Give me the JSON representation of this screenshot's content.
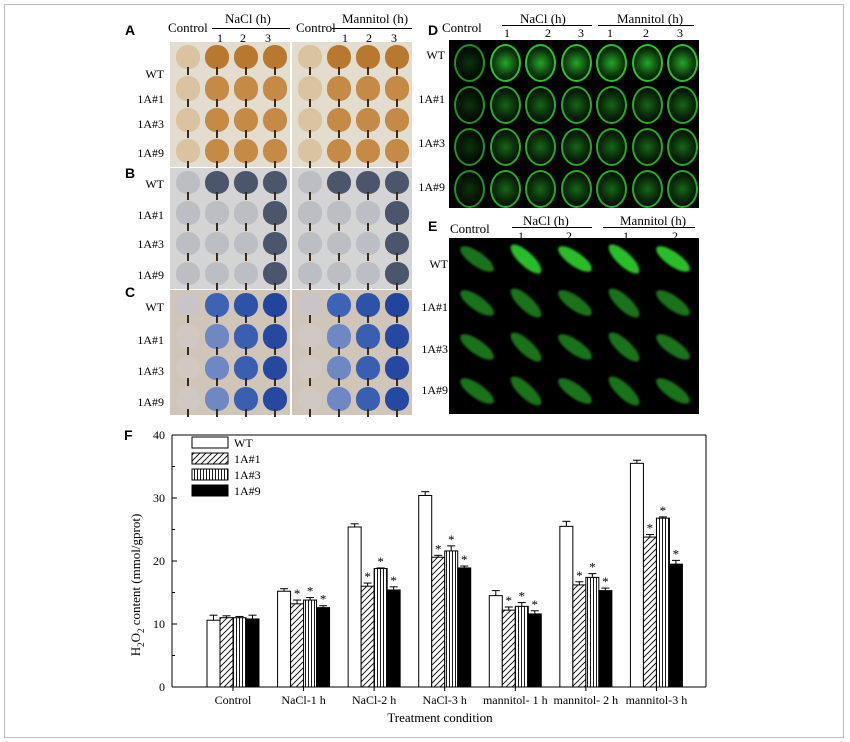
{
  "panels": {
    "A": "A",
    "B": "B",
    "C": "C",
    "D": "D",
    "E": "E",
    "F": "F"
  },
  "leaf_header": {
    "control": "Control",
    "nacl": "NaCl (h)",
    "mannitol": "Mannitol (h)",
    "times": [
      "1",
      "2",
      "3"
    ]
  },
  "lines": [
    "WT",
    "1A#1",
    "1A#3",
    "1A#9"
  ],
  "d_header": {
    "control": "Control",
    "nacl": "NaCl (h)",
    "mannitol": "Mannitol (h)",
    "times": [
      "1",
      "2",
      "3"
    ]
  },
  "e_header": {
    "control": "Control",
    "nacl": "NaCl (h)",
    "mannitol": "Mannitol (h)",
    "times": [
      "1",
      "2"
    ]
  },
  "colors": {
    "dab_bg": "#e3ddd0",
    "dab_leaf_light": "#d9c3a0",
    "dab_leaf_dark": "#b8782e",
    "nbt_bg": "#d4d4d4",
    "nbt_leaf": "#bdbec3",
    "nbt_dark": "#2a3348",
    "evans_bg": "#cfc5b8",
    "evans_leaf": "#2a4fa0",
    "fluor": "#2fd12f"
  },
  "chart_data": {
    "type": "bar",
    "categories": [
      "Control",
      "NaCl-1 h",
      "NaCl-2 h",
      "NaCl-3 h",
      "mannitol- 1 h",
      "mannitol- 2 h",
      "mannitol-3 h"
    ],
    "series": [
      {
        "name": "WT",
        "values": [
          10.6,
          15.2,
          25.4,
          30.4,
          14.5,
          25.5,
          35.5
        ],
        "errors": [
          0.8,
          0.4,
          0.5,
          0.6,
          0.8,
          0.8,
          0.5
        ],
        "star": [
          false,
          false,
          false,
          false,
          false,
          false,
          false
        ]
      },
      {
        "name": "1A#1",
        "values": [
          11.0,
          13.2,
          16.0,
          20.6,
          12.2,
          16.2,
          23.8
        ],
        "errors": [
          0.3,
          0.6,
          0.5,
          0.3,
          0.5,
          0.5,
          0.4
        ],
        "star": [
          false,
          true,
          true,
          true,
          true,
          true,
          true
        ]
      },
      {
        "name": "1A#3",
        "values": [
          11.0,
          13.8,
          18.8,
          21.6,
          12.8,
          17.4,
          26.8
        ],
        "errors": [
          0.2,
          0.4,
          0.1,
          0.8,
          0.6,
          0.6,
          0.2
        ],
        "star": [
          false,
          true,
          true,
          true,
          true,
          true,
          true
        ]
      },
      {
        "name": "1A#9",
        "values": [
          10.8,
          12.6,
          15.4,
          18.9,
          11.6,
          15.3,
          19.5
        ],
        "errors": [
          0.6,
          0.3,
          0.5,
          0.3,
          0.5,
          0.4,
          0.6
        ],
        "star": [
          false,
          true,
          true,
          true,
          true,
          true,
          true
        ]
      }
    ],
    "fills": [
      "white",
      "hatch-diagonal",
      "hatch-vertical",
      "black"
    ],
    "star_label": "*",
    "ylim": [
      0,
      40
    ],
    "yticks": [
      "0",
      "10",
      "20",
      "30",
      "40"
    ],
    "ylabel": "H2O2 content (mmol/gprot)",
    "ylabel_parts": {
      "h": "H",
      "sub1": "2",
      "o": "O",
      "sub2": "2",
      "rest": " content (mmol/gprot)"
    },
    "xlabel": "Treatment condition",
    "legend_position": "top-left"
  }
}
